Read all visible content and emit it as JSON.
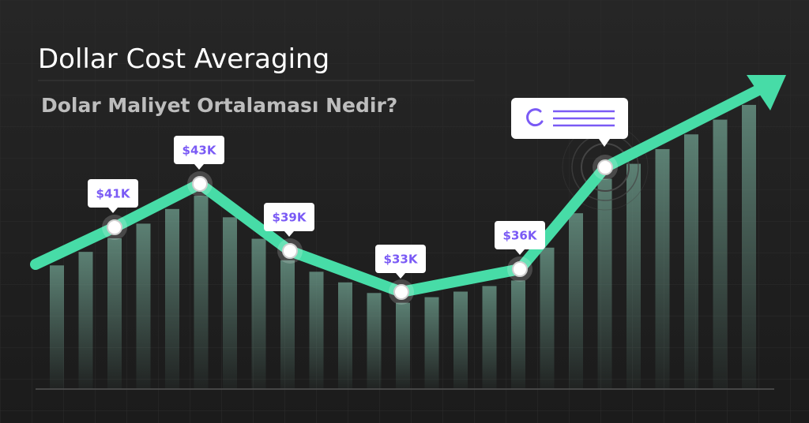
{
  "header": {
    "title": "Dollar Cost Averaging",
    "subtitle": "Dolar Maliyet Ortalaması Nedir?"
  },
  "labels": [
    "$41K",
    "$43K",
    "$39K",
    "$33K",
    "$36K"
  ]
}
